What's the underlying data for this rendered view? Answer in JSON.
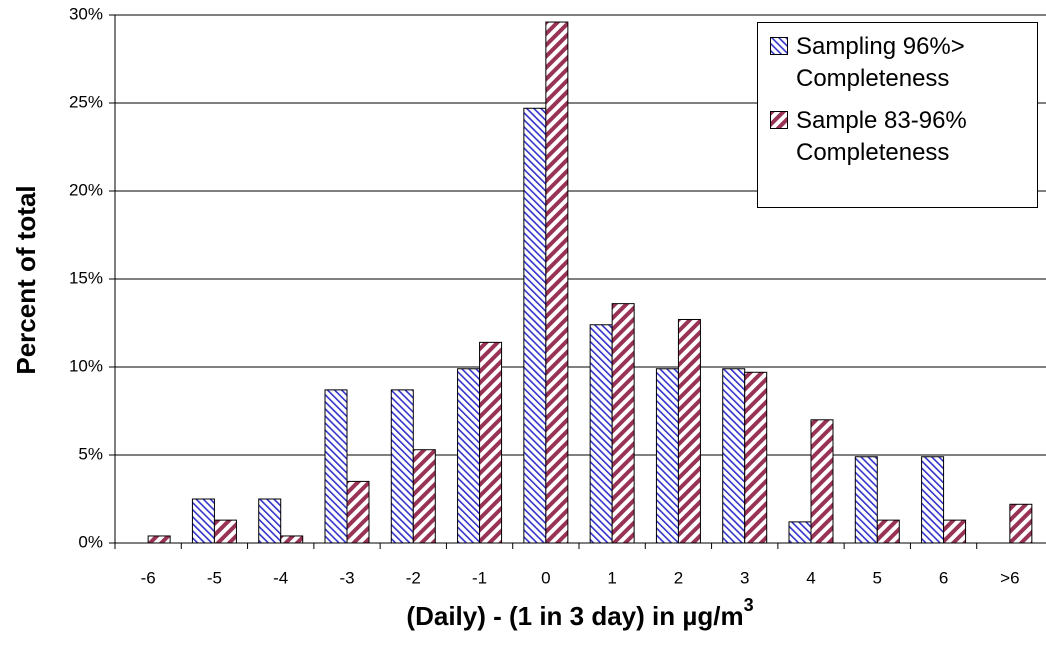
{
  "chart_data": {
    "type": "bar",
    "x_label": "(Daily) - (1 in 3 day) in µg/m",
    "x_label_sup": "3",
    "y_label": "Percent of total",
    "categories": [
      "-6",
      "-5",
      "-4",
      "-3",
      "-2",
      "-1",
      "0",
      "1",
      "2",
      "3",
      "4",
      "5",
      "6",
      ">6"
    ],
    "series": [
      {
        "name": "Sampling 96%> Completeness",
        "color": "#3333cc",
        "values": [
          0,
          2.5,
          2.5,
          8.7,
          8.7,
          9.9,
          24.7,
          12.4,
          9.9,
          9.9,
          1.2,
          4.9,
          4.9,
          0
        ]
      },
      {
        "name": "Sample 83-96% Completeness",
        "color": "#993355",
        "values": [
          0.4,
          1.3,
          0.4,
          3.5,
          5.3,
          11.4,
          29.6,
          13.6,
          12.7,
          9.7,
          7.0,
          1.3,
          1.3,
          2.2
        ]
      }
    ],
    "ylim": [
      0,
      30
    ],
    "yticks": [
      {
        "value": 0,
        "label": "0%"
      },
      {
        "value": 5,
        "label": "5%"
      },
      {
        "value": 10,
        "label": "10%"
      },
      {
        "value": 15,
        "label": "15%"
      },
      {
        "value": 20,
        "label": "20%"
      },
      {
        "value": 25,
        "label": "25%"
      },
      {
        "value": 30,
        "label": "30%"
      }
    ],
    "grid": true,
    "legend": "upper-right"
  }
}
